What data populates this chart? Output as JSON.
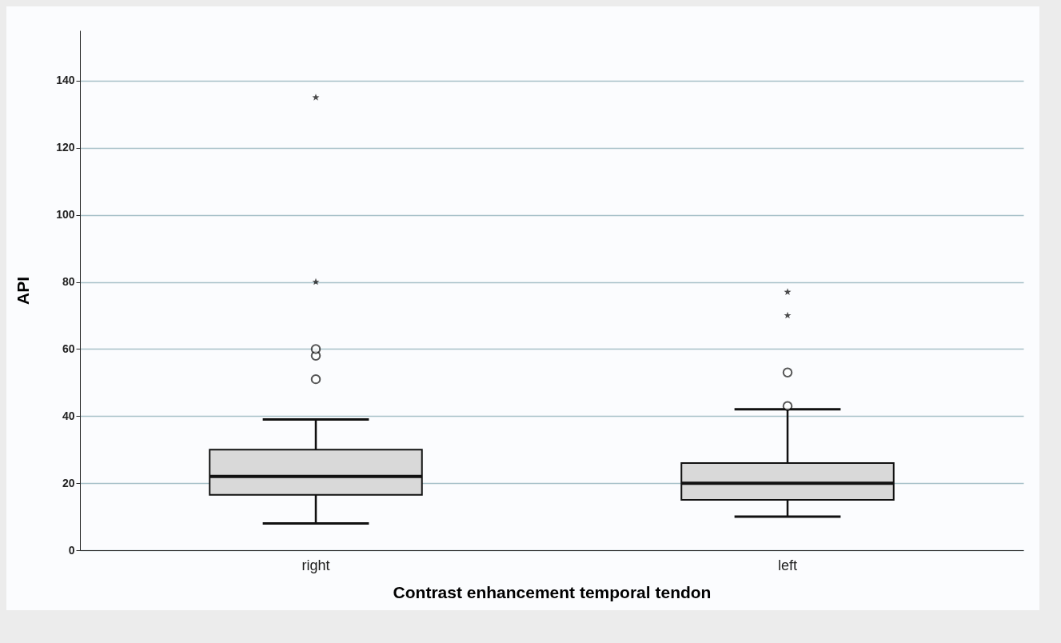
{
  "chart_data": {
    "type": "box",
    "xlabel": "Contrast enhancement temporal tendon",
    "ylabel": "API",
    "categories": [
      "right",
      "left"
    ],
    "boxes": [
      {
        "low": 8,
        "q1": 16.5,
        "median": 22,
        "q3": 30,
        "high": 39,
        "outliers": [
          51,
          58,
          60
        ]
      },
      {
        "low": 10,
        "q1": 15,
        "median": 20,
        "q3": 26,
        "high": 42,
        "outliers": [
          43,
          53
        ]
      }
    ],
    "color": "#d9d9d9",
    "series": [
      {
        "type": "scatter",
        "x": [
          "right",
          "right",
          "left",
          "left"
        ],
        "values": [
          135,
          80,
          77,
          70
        ],
        "marker": "star",
        "color": "#000000"
      }
    ],
    "ylim": [
      0,
      155
    ],
    "yticks": [
      0,
      20,
      40,
      60,
      80,
      100,
      120,
      140
    ],
    "grid": "y"
  }
}
